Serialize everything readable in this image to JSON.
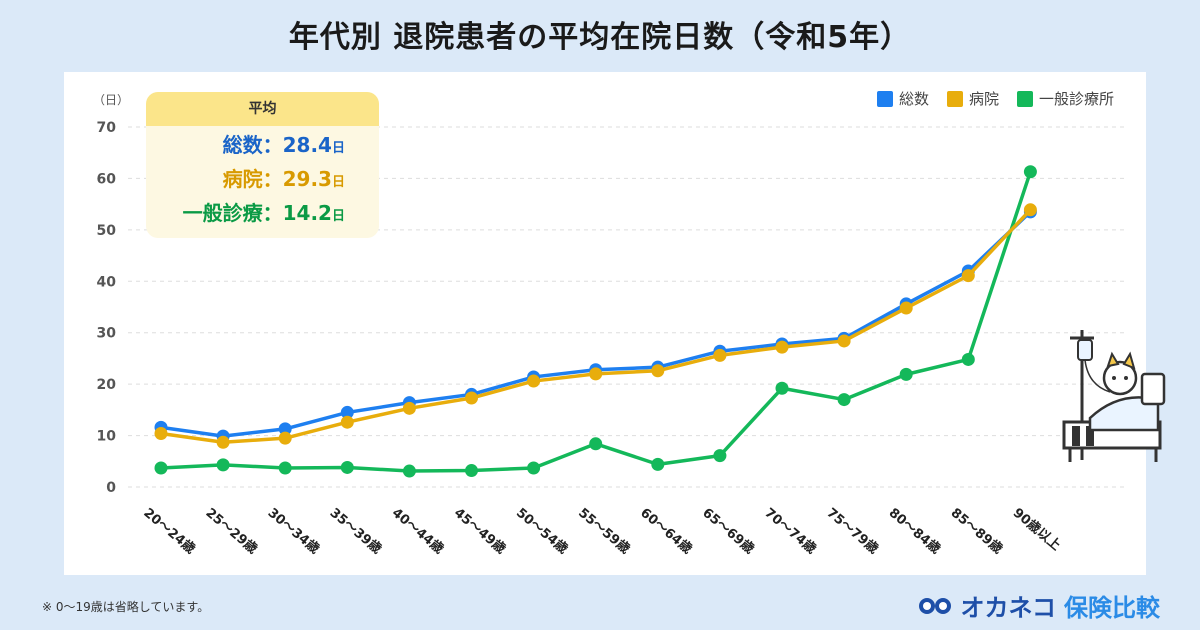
{
  "title": "年代別 退院患者の平均在院日数（令和5年）",
  "y_unit": "（日）",
  "average_box": {
    "heading": "平均",
    "rows": [
      {
        "label": "総数：",
        "value": "28.4",
        "unit": "日"
      },
      {
        "label": "病院：",
        "value": "29.3",
        "unit": "日"
      },
      {
        "label": "一般診療：",
        "value": "14.2",
        "unit": "日"
      }
    ]
  },
  "footnote": "※ 0〜19歳は省略しています。",
  "logo": {
    "brand": "オカネコ",
    "sub": "保険比較"
  },
  "colors": {
    "total": "#1e7ff0",
    "hospital": "#e8ad0c",
    "general": "#14b85a",
    "grid": "#dddddd"
  },
  "chart_data": {
    "type": "line",
    "title": "年代別 退院患者の平均在院日数（令和5年）",
    "ylabel": "（日）",
    "xlabel": "",
    "ylim": [
      0,
      70
    ],
    "yticks": [
      0,
      10,
      20,
      30,
      40,
      50,
      60,
      70
    ],
    "grid": true,
    "legend": "top-right",
    "categories": [
      "20〜24歳",
      "25〜29歳",
      "30〜34歳",
      "35〜39歳",
      "40〜44歳",
      "45〜49歳",
      "50〜54歳",
      "55〜59歳",
      "60〜64歳",
      "65〜69歳",
      "70〜74歳",
      "75〜79歳",
      "80〜84歳",
      "85〜89歳",
      "90歳以上"
    ],
    "series": [
      {
        "name": "総数",
        "key": "total",
        "values": [
          11.6,
          9.9,
          11.3,
          14.5,
          16.4,
          18.0,
          21.4,
          22.8,
          23.3,
          26.4,
          27.8,
          28.9,
          35.6,
          42.0,
          53.5
        ]
      },
      {
        "name": "病院",
        "key": "hospital",
        "values": [
          10.4,
          8.7,
          9.5,
          12.6,
          15.3,
          17.3,
          20.6,
          22.0,
          22.6,
          25.6,
          27.2,
          28.4,
          34.8,
          41.1,
          53.9
        ]
      },
      {
        "name": "一般診療所",
        "key": "general",
        "values": [
          3.7,
          4.3,
          3.7,
          3.8,
          3.1,
          3.2,
          3.7,
          8.4,
          4.4,
          6.1,
          19.2,
          17.0,
          21.9,
          24.8,
          61.3
        ]
      }
    ]
  }
}
